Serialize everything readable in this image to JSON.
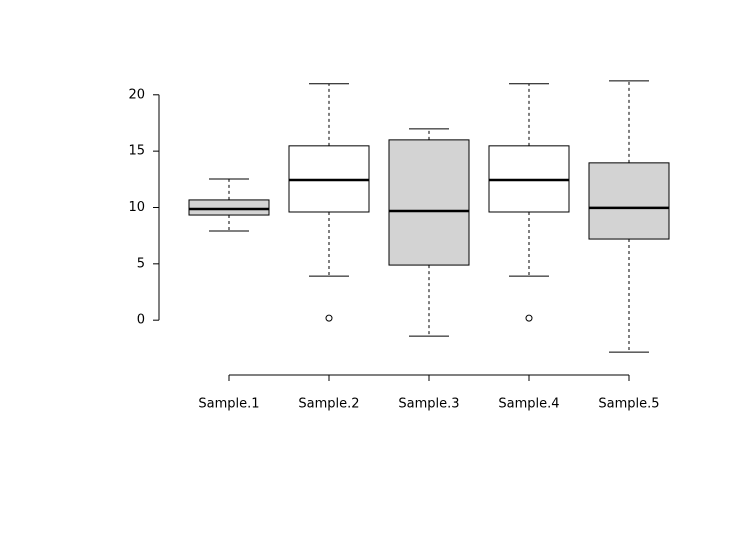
{
  "chart_data": {
    "type": "boxplot",
    "categories": [
      "Sample.1",
      "Sample.2",
      "Sample.3",
      "Sample.4",
      "Sample.5"
    ],
    "min": [
      7.91,
      3.91,
      -1.42,
      3.91,
      -2.84
    ],
    "q1": [
      9.33,
      9.6,
      4.89,
      9.6,
      7.2
    ],
    "median": [
      9.87,
      12.44,
      9.69,
      12.44,
      9.96
    ],
    "q3": [
      10.67,
      15.47,
      16.0,
      15.47,
      13.96
    ],
    "max": [
      12.53,
      20.98,
      16.98,
      20.98,
      21.24
    ],
    "outliers": [
      [],
      [
        0.18
      ],
      [],
      [
        0.18
      ],
      []
    ],
    "colors": [
      "#d3d3d3",
      "#ffffff",
      "#d3d3d3",
      "#ffffff",
      "#d3d3d3"
    ],
    "ylim": [
      -3.8,
      22.2
    ],
    "yticks": [
      0,
      5,
      10,
      15,
      20
    ]
  }
}
